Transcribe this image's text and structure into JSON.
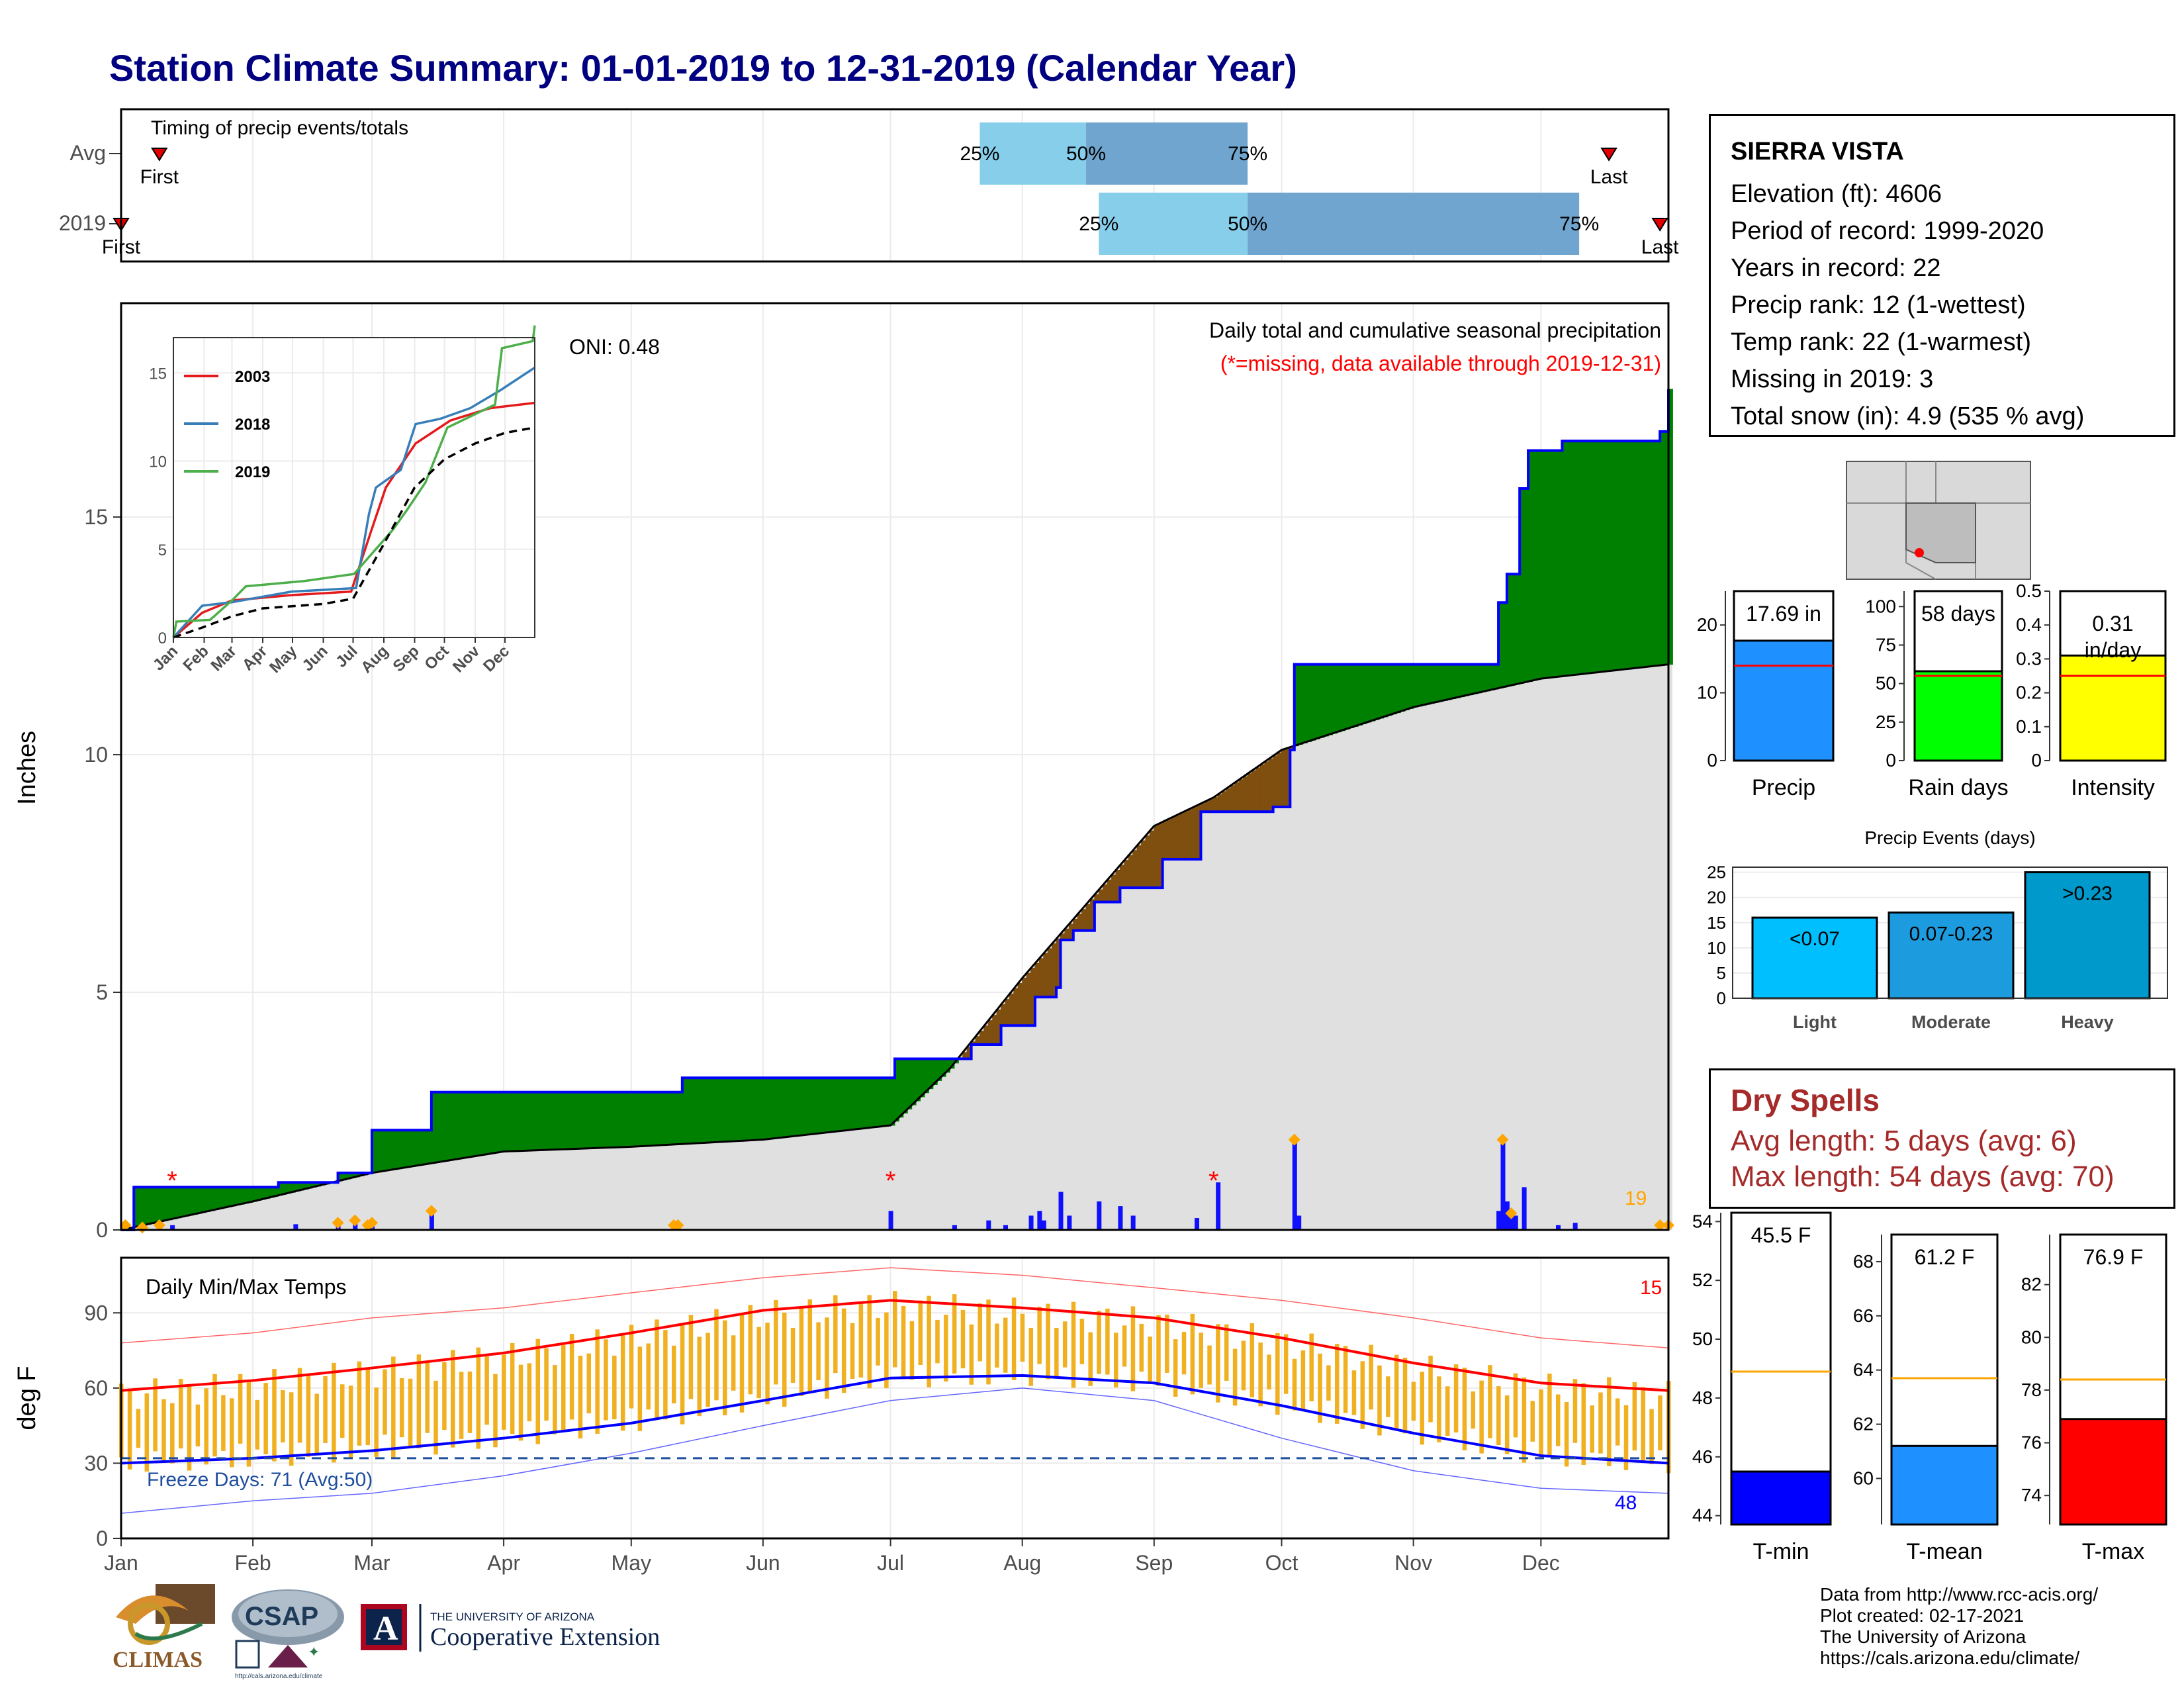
{
  "title": "Station Climate Summary: 01-01-2019 to 12-31-2019 (Calendar Year)",
  "station": {
    "name": "SIERRA VISTA",
    "elevation": "Elevation (ft): 4606",
    "period": "Period of record: 1999-2020",
    "years": "Years in record: 22",
    "precip_rank": "Precip rank: 12 (1-wettest)",
    "temp_rank": "Temp rank: 22 (1-warmest)",
    "missing": "Missing in 2019: 3",
    "snow": "Total snow (in): 4.9 (535 % avg)"
  },
  "dry_spells": {
    "title": "Dry Spells",
    "avg": "Avg length: 5 days (avg: 6)",
    "max": "Max length: 54 days (avg: 70)"
  },
  "credits": [
    "Data from http://www.rcc-acis.org/",
    "Plot created: 02-17-2021",
    "The University of Arizona",
    "https://cals.arizona.edu/climate/"
  ],
  "logos": {
    "climas": "CLIMAS",
    "csap": "CSAP",
    "csap_url": "http://cals.arizona.edu/climate",
    "ua_top": "THE UNIVERSITY OF ARIZONA",
    "ua_bottom": "Cooperative Extension",
    "ua_letter": "A"
  },
  "colors": {
    "avg_fill": "#E0E0E0",
    "wet": "#008000",
    "dry": "#7F4F0F",
    "cum_line": "#0000FF",
    "tmax": "#FF0000",
    "tmin": "#0000FF",
    "range": "#F0B020",
    "light": "#00BFFF",
    "moderate": "#1C9CDF",
    "heavy": "#0099CC"
  },
  "chart_data": [
    {
      "type": "timeline",
      "title": "Timing of precip events/totals",
      "rows": [
        "Avg",
        "2019"
      ],
      "avg": {
        "first_day": 10,
        "p25": 203,
        "p50": 228,
        "p75": 266,
        "last_day": 351,
        "labels": {
          "first": "First",
          "last": "Last",
          "p25": "25%",
          "p50": "50%",
          "p75": "75%"
        }
      },
      "y2019": {
        "first_day": 1,
        "p25": 231,
        "p50": 266,
        "p75": 344,
        "last_day": 363,
        "labels": {
          "first": "First",
          "last": "Last",
          "p25": "25%",
          "p50": "50%",
          "p75": "75%"
        }
      }
    },
    {
      "type": "area",
      "title": "Daily total and cumulative seasonal precipitation",
      "subtitle": "(*=missing, data available through 2019-12-31)",
      "oni": "ONI: 0.48",
      "ylabel": "Inches",
      "ylim": [
        0,
        19.5
      ],
      "yticks": [
        0,
        5,
        10,
        15
      ],
      "count_label": "19",
      "avg_cum": [
        [
          1,
          0
        ],
        [
          32,
          0.6
        ],
        [
          60,
          1.2
        ],
        [
          91,
          1.65
        ],
        [
          121,
          1.75
        ],
        [
          152,
          1.9
        ],
        [
          182,
          2.2
        ],
        [
          196,
          3.4
        ],
        [
          213,
          5.3
        ],
        [
          244,
          8.5
        ],
        [
          258,
          9.1
        ],
        [
          274,
          10.1
        ],
        [
          305,
          11.0
        ],
        [
          335,
          11.6
        ],
        [
          365,
          11.9
        ]
      ],
      "obs_cum": [
        [
          1,
          0
        ],
        [
          4,
          0.9
        ],
        [
          38,
          1.0
        ],
        [
          52,
          1.2
        ],
        [
          60,
          2.1
        ],
        [
          73,
          2.1
        ],
        [
          74,
          2.9
        ],
        [
          132,
          2.9
        ],
        [
          133,
          3.2
        ],
        [
          182,
          3.2
        ],
        [
          183,
          3.6
        ],
        [
          198,
          3.6
        ],
        [
          201,
          3.9
        ],
        [
          208,
          4.3
        ],
        [
          216,
          4.9
        ],
        [
          221,
          5.1
        ],
        [
          222,
          6.1
        ],
        [
          225,
          6.3
        ],
        [
          230,
          6.9
        ],
        [
          236,
          7.2
        ],
        [
          244,
          7.2
        ],
        [
          246,
          7.8
        ],
        [
          255,
          8.8
        ],
        [
          272,
          8.9
        ],
        [
          276,
          10.1
        ],
        [
          277,
          11.9
        ],
        [
          324,
          11.9
        ],
        [
          325,
          13.2
        ],
        [
          327,
          13.8
        ],
        [
          330,
          15.6
        ],
        [
          332,
          16.4
        ],
        [
          340,
          16.6
        ],
        [
          363,
          16.8
        ],
        [
          365,
          17.69
        ]
      ],
      "daily_bars": [
        [
          6,
          0.05
        ],
        [
          13,
          0.1
        ],
        [
          42,
          0.12
        ],
        [
          52,
          0.15
        ],
        [
          56,
          0.2
        ],
        [
          60,
          0.15
        ],
        [
          74,
          0.4
        ],
        [
          131,
          0.1
        ],
        [
          182,
          0.4
        ],
        [
          197,
          0.1
        ],
        [
          205,
          0.2
        ],
        [
          209,
          0.1
        ],
        [
          215,
          0.3
        ],
        [
          217,
          0.4
        ],
        [
          218,
          0.2
        ],
        [
          222,
          0.8
        ],
        [
          224,
          0.3
        ],
        [
          231,
          0.6
        ],
        [
          236,
          0.5
        ],
        [
          239,
          0.3
        ],
        [
          254,
          0.25
        ],
        [
          259,
          1.0
        ],
        [
          277,
          1.9
        ],
        [
          278,
          0.3
        ],
        [
          325,
          0.4
        ],
        [
          326,
          1.9
        ],
        [
          327,
          0.6
        ],
        [
          328,
          0.35
        ],
        [
          329,
          0.3
        ],
        [
          331,
          0.9
        ],
        [
          339,
          0.1
        ],
        [
          343,
          0.15
        ]
      ],
      "snow_marks": [
        2,
        6,
        10,
        52,
        56,
        59,
        60,
        74,
        131,
        132,
        277,
        326,
        328,
        363,
        365
      ],
      "missing_marks": [
        13,
        182,
        258
      ],
      "inset": {
        "series": [
          {
            "name": "2003",
            "color": "#E41A1C",
            "points": [
              [
                1,
                0
              ],
              [
                30,
                1.4
              ],
              [
                60,
                2.1
              ],
              [
                120,
                2.4
              ],
              [
                180,
                2.6
              ],
              [
                200,
                6.0
              ],
              [
                215,
                8.5
              ],
              [
                245,
                11.0
              ],
              [
                280,
                12.3
              ],
              [
                320,
                13.0
              ],
              [
                365,
                13.3
              ]
            ]
          },
          {
            "name": "2018",
            "color": "#377EB8",
            "points": [
              [
                1,
                0
              ],
              [
                30,
                1.8
              ],
              [
                60,
                2.0
              ],
              [
                120,
                2.6
              ],
              [
                185,
                2.8
              ],
              [
                198,
                7.0
              ],
              [
                205,
                8.5
              ],
              [
                230,
                9.5
              ],
              [
                245,
                12.1
              ],
              [
                270,
                12.4
              ],
              [
                300,
                13.0
              ],
              [
                330,
                14.0
              ],
              [
                365,
                15.3
              ]
            ]
          },
          {
            "name": "2019",
            "color": "#4DAF4A",
            "points": [
              [
                1,
                0
              ],
              [
                4,
                0.9
              ],
              [
                38,
                1.0
              ],
              [
                60,
                2.1
              ],
              [
                74,
                2.9
              ],
              [
                133,
                3.2
              ],
              [
                183,
                3.6
              ],
              [
                222,
                6.1
              ],
              [
                236,
                7.2
              ],
              [
                255,
                8.8
              ],
              [
                277,
                11.9
              ],
              [
                325,
                13.2
              ],
              [
                332,
                16.4
              ],
              [
                363,
                16.8
              ],
              [
                365,
                17.69
              ]
            ]
          },
          {
            "name": "avg",
            "color": "#000000",
            "points": [
              [
                1,
                0
              ],
              [
                32,
                0.6
              ],
              [
                60,
                1.2
              ],
              [
                91,
                1.65
              ],
              [
                152,
                1.9
              ],
              [
                182,
                2.2
              ],
              [
                213,
                5.3
              ],
              [
                244,
                8.5
              ],
              [
                274,
                10.1
              ],
              [
                305,
                11.0
              ],
              [
                335,
                11.6
              ],
              [
                365,
                11.9
              ]
            ]
          }
        ],
        "ylim": [
          0,
          17
        ],
        "yticks": [
          0,
          5,
          10,
          15
        ],
        "months": [
          "Jan",
          "Feb",
          "Mar",
          "Apr",
          "May",
          "Jun",
          "Jul",
          "Aug",
          "Sep",
          "Oct",
          "Nov",
          "Dec"
        ]
      }
    },
    {
      "type": "bar",
      "title": "Precip",
      "value_label": "17.69 in",
      "value": 17.69,
      "avg": 14.0,
      "ylim": [
        0,
        25
      ],
      "yticks": [
        0,
        10,
        20
      ]
    },
    {
      "type": "bar",
      "title": "Rain days",
      "value_label": "58 days",
      "value": 58,
      "avg": 55,
      "ylim": [
        0,
        110
      ],
      "yticks": [
        0,
        25,
        50,
        75,
        100
      ]
    },
    {
      "type": "bar",
      "title": "Intensity",
      "value_label": "0.31 in/day",
      "value": 0.31,
      "avg": 0.25,
      "ylim": [
        0,
        0.5
      ],
      "yticks": [
        0.0,
        0.1,
        0.2,
        0.3,
        0.4,
        0.5
      ]
    },
    {
      "type": "bar",
      "title": "Precip Events (days)",
      "categories": [
        "Light",
        "Moderate",
        "Heavy"
      ],
      "bar_labels": [
        "<0.07",
        "0.07-0.23",
        ">0.23"
      ],
      "values": [
        16,
        17,
        25
      ],
      "ylim": [
        0,
        26
      ],
      "yticks": [
        0,
        5,
        10,
        15,
        20,
        25
      ]
    },
    {
      "type": "line",
      "title": "Daily Min/Max Temps",
      "ylabel": "deg F",
      "ylim": [
        0,
        112
      ],
      "yticks": [
        0,
        30,
        60,
        90
      ],
      "freeze_label": "Freeze Days: 71 (Avg:50)",
      "freeze_line": 32,
      "hot_count": "15",
      "cold_count": "48",
      "tmax_avg": [
        [
          1,
          59
        ],
        [
          32,
          63
        ],
        [
          60,
          68
        ],
        [
          91,
          74
        ],
        [
          121,
          82
        ],
        [
          152,
          91
        ],
        [
          182,
          95
        ],
        [
          213,
          92
        ],
        [
          244,
          88
        ],
        [
          274,
          80
        ],
        [
          305,
          70
        ],
        [
          335,
          62
        ],
        [
          365,
          59
        ]
      ],
      "tmin_avg": [
        [
          1,
          30
        ],
        [
          32,
          32
        ],
        [
          60,
          35
        ],
        [
          91,
          40
        ],
        [
          121,
          46
        ],
        [
          152,
          55
        ],
        [
          182,
          64
        ],
        [
          213,
          65
        ],
        [
          244,
          62
        ],
        [
          274,
          53
        ],
        [
          305,
          42
        ],
        [
          335,
          33
        ],
        [
          365,
          30
        ]
      ],
      "tmax_rec": [
        [
          1,
          78
        ],
        [
          32,
          82
        ],
        [
          60,
          88
        ],
        [
          91,
          92
        ],
        [
          121,
          98
        ],
        [
          152,
          104
        ],
        [
          182,
          108
        ],
        [
          213,
          105
        ],
        [
          244,
          100
        ],
        [
          274,
          95
        ],
        [
          305,
          88
        ],
        [
          335,
          80
        ],
        [
          365,
          76
        ]
      ],
      "tmin_rec": [
        [
          1,
          10
        ],
        [
          32,
          15
        ],
        [
          60,
          18
        ],
        [
          91,
          25
        ],
        [
          121,
          34
        ],
        [
          152,
          45
        ],
        [
          182,
          55
        ],
        [
          213,
          60
        ],
        [
          244,
          55
        ],
        [
          274,
          40
        ],
        [
          305,
          27
        ],
        [
          335,
          20
        ],
        [
          365,
          18
        ]
      ],
      "months": [
        "Jan",
        "Feb",
        "Mar",
        "Apr",
        "May",
        "Jun",
        "Jul",
        "Aug",
        "Sep",
        "Oct",
        "Nov",
        "Dec"
      ]
    },
    {
      "type": "bar",
      "title": "T-min",
      "value_label": "45.5 F",
      "value": 45.5,
      "avg": 48.9,
      "ylim": [
        43.7,
        54.3
      ],
      "yticks": [
        44,
        46,
        48,
        50,
        52,
        54
      ]
    },
    {
      "type": "bar",
      "title": "T-mean",
      "value_label": "61.2 F",
      "value": 61.2,
      "avg": 63.7,
      "ylim": [
        58.3,
        69.0
      ],
      "yticks": [
        60,
        62,
        64,
        66,
        68
      ]
    },
    {
      "type": "bar",
      "title": "T-max",
      "value_label": "76.9 F",
      "value": 76.9,
      "avg": 78.4,
      "ylim": [
        72.9,
        83.9
      ],
      "yticks": [
        74,
        76,
        78,
        80,
        82
      ]
    }
  ]
}
